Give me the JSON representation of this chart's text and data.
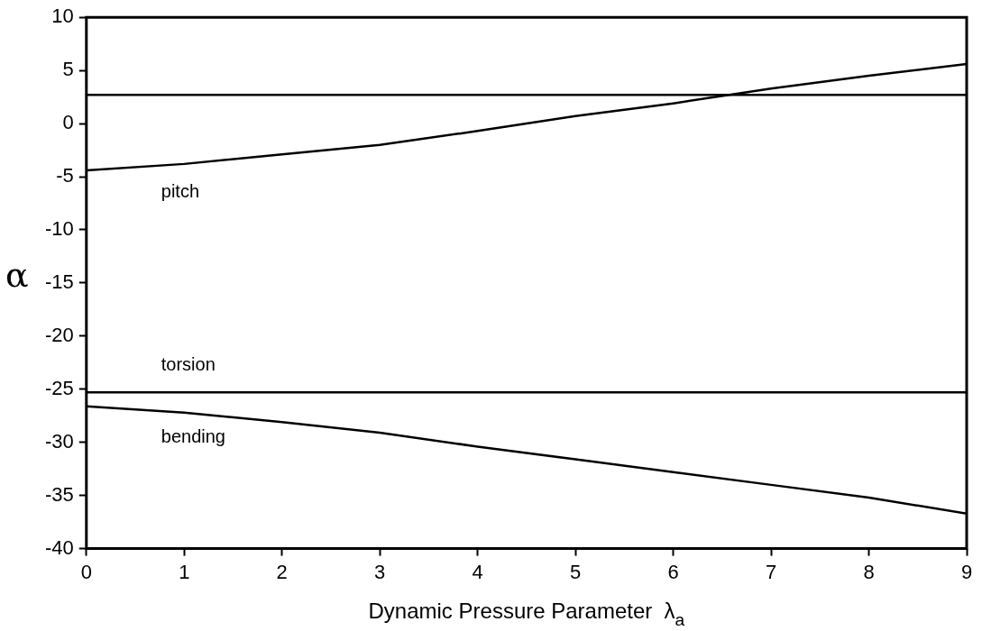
{
  "chart_data": {
    "type": "line",
    "xlabel": "Dynamic Pressure Parameter  λ$_{a}$",
    "ylabel": "α",
    "xlim": [
      0,
      9
    ],
    "xticks": [
      0,
      1,
      2,
      3,
      4,
      5,
      6,
      7,
      8,
      9
    ],
    "ylim": [
      -40,
      10
    ],
    "yticks": [
      -40,
      -35,
      -30,
      -25,
      -20,
      -15,
      -10,
      -5,
      0,
      5,
      10
    ],
    "grid": false,
    "legend": false,
    "marker": "none",
    "line_style": "solid",
    "series": [
      {
        "color": "#000000",
        "x": [
          0,
          9
        ],
        "values": [
          2.7,
          2.7
        ]
      },
      {
        "name": "pitch",
        "color": "#000000",
        "x": [
          0,
          1,
          2,
          3,
          4,
          5,
          6,
          7,
          8,
          9
        ],
        "values": [
          -4.4,
          -3.8,
          -2.9,
          -2.0,
          -0.7,
          0.7,
          1.9,
          3.3,
          4.5,
          5.6
        ]
      },
      {
        "name": "torsion",
        "color": "#000000",
        "x": [
          0,
          9
        ],
        "values": [
          -25.3,
          -25.3
        ]
      },
      {
        "name": "bending",
        "color": "#000000",
        "x": [
          0,
          1,
          2,
          3,
          4,
          5,
          6,
          7,
          8,
          9
        ],
        "values": [
          -26.6,
          -27.2,
          -28.1,
          -29.1,
          -30.4,
          -31.6,
          -32.8,
          -34.0,
          -35.2,
          -36.7
        ]
      }
    ]
  }
}
